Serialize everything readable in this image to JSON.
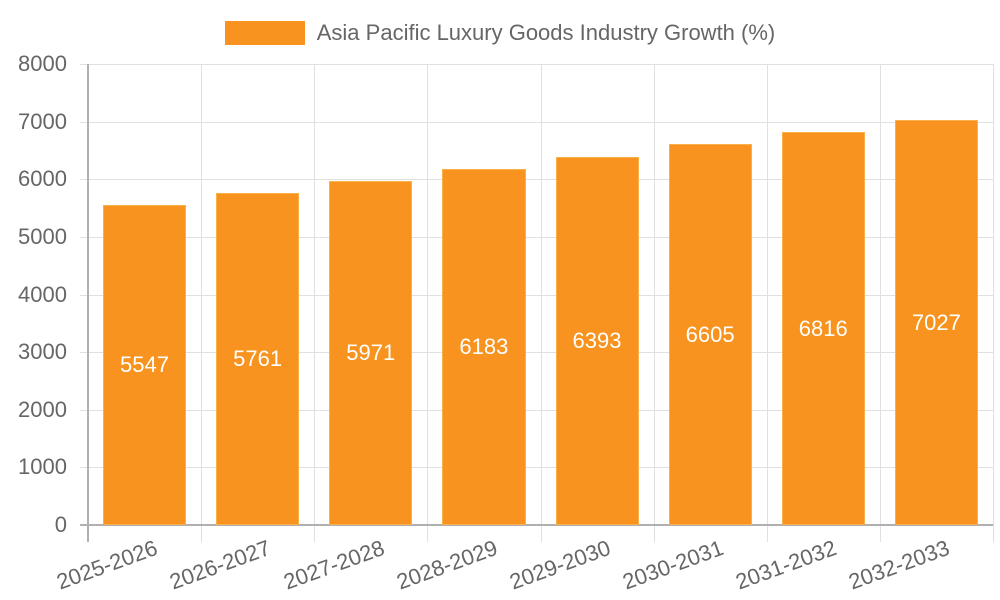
{
  "chart_data": {
    "type": "bar",
    "title": "",
    "legend": [
      "Asia Pacific Luxury Goods Industry Growth (%)"
    ],
    "legend_position": "top",
    "categories": [
      "2025-2026",
      "2026-2027",
      "2027-2028",
      "2028-2029",
      "2029-2030",
      "2030-2031",
      "2031-2032",
      "2032-2033"
    ],
    "series": [
      {
        "name": "Asia Pacific Luxury Goods Industry Growth (%)",
        "values": [
          5547,
          5761,
          5971,
          6183,
          6393,
          6605,
          6816,
          7027
        ],
        "color": "#f7931e"
      }
    ],
    "xlabel": "",
    "ylabel": "",
    "ylim": [
      0,
      8000
    ],
    "yticks": [
      "0",
      "1000",
      "2000",
      "3000",
      "4000",
      "5000",
      "6000",
      "7000",
      "8000"
    ],
    "grid": true,
    "data_labels": [
      "5547",
      "5761",
      "5971",
      "6183",
      "6393",
      "6605",
      "6816",
      "7027"
    ]
  }
}
